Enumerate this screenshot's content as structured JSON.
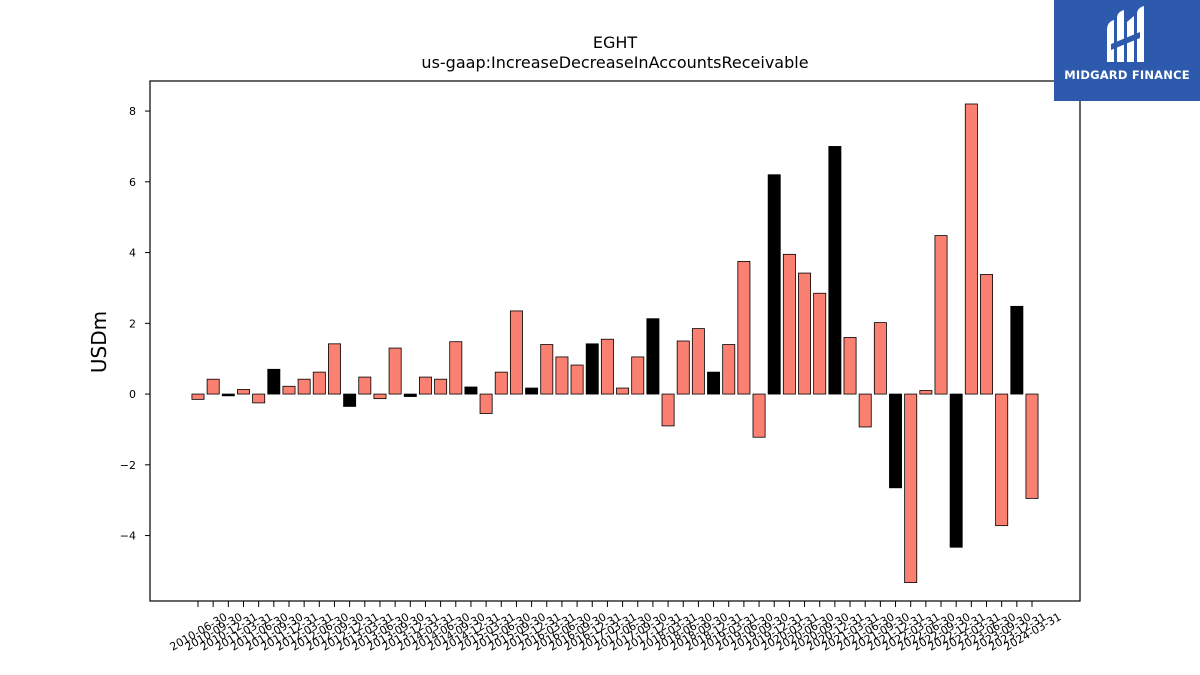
{
  "brand": {
    "name": "MIDGARD FINANCE",
    "logo_icon": "mh-monogram-icon",
    "color": "#2d5aac"
  },
  "colors": {
    "positive_bar": "#fa8072",
    "highlight_bar": "#000000",
    "edge": "#000000"
  },
  "chart_data": {
    "type": "bar",
    "title": "EGHT",
    "subtitle": "us-gaap:IncreaseDecreaseInAccountsReceivable",
    "xlabel": "",
    "ylabel": "USDm",
    "ylim": [
      -5.85,
      8.85
    ],
    "yticks": [
      -4,
      -2,
      0,
      2,
      4,
      6,
      8
    ],
    "grid": false,
    "categories": [
      "2010-06-30",
      "2010-09-30",
      "2010-12-31",
      "2011-03-31",
      "2011-06-30",
      "2011-09-30",
      "2011-12-31",
      "2012-03-31",
      "2012-06-30",
      "2012-09-30",
      "2012-12-31",
      "2013-03-31",
      "2013-06-30",
      "2013-09-30",
      "2013-12-31",
      "2014-03-31",
      "2014-06-30",
      "2014-09-30",
      "2014-12-31",
      "2015-03-31",
      "2015-06-30",
      "2015-09-30",
      "2015-12-31",
      "2016-03-31",
      "2016-06-30",
      "2016-09-30",
      "2016-12-31",
      "2017-03-31",
      "2017-06-30",
      "2017-09-30",
      "2017-12-31",
      "2018-03-31",
      "2018-06-30",
      "2018-09-30",
      "2018-12-31",
      "2019-03-31",
      "2019-06-30",
      "2019-09-30",
      "2019-12-31",
      "2020-03-31",
      "2020-06-30",
      "2020-09-30",
      "2020-12-31",
      "2021-03-31",
      "2021-06-30",
      "2021-09-30",
      "2021-12-31",
      "2022-03-31",
      "2022-06-30",
      "2022-09-30",
      "2022-12-31",
      "2023-03-31",
      "2023-06-30",
      "2023-09-30",
      "2023-12-31",
      "2024-03-31"
    ],
    "values": [
      -0.15,
      0.42,
      -0.05,
      0.13,
      -0.25,
      0.7,
      0.22,
      0.42,
      0.62,
      1.42,
      -0.35,
      0.48,
      -0.13,
      1.3,
      -0.07,
      0.48,
      0.42,
      1.48,
      0.2,
      -0.55,
      0.62,
      2.35,
      0.17,
      1.4,
      1.05,
      0.82,
      1.42,
      1.55,
      0.17,
      1.05,
      2.13,
      -0.9,
      1.5,
      1.85,
      0.62,
      1.4,
      3.75,
      -1.22,
      6.2,
      3.95,
      3.42,
      2.85,
      7.0,
      1.6,
      -0.93,
      2.02,
      -2.65,
      -5.33,
      0.1,
      4.48,
      -4.33,
      8.2,
      3.38,
      -3.72,
      2.48,
      -2.95
    ],
    "highlight": [
      false,
      false,
      true,
      false,
      false,
      true,
      false,
      false,
      false,
      false,
      true,
      false,
      false,
      false,
      true,
      false,
      false,
      false,
      true,
      false,
      false,
      false,
      true,
      false,
      false,
      false,
      true,
      false,
      false,
      false,
      true,
      false,
      false,
      false,
      true,
      false,
      false,
      false,
      true,
      false,
      false,
      false,
      true,
      false,
      false,
      false,
      true,
      false,
      false,
      false,
      true,
      false,
      false,
      false,
      true,
      false
    ]
  }
}
